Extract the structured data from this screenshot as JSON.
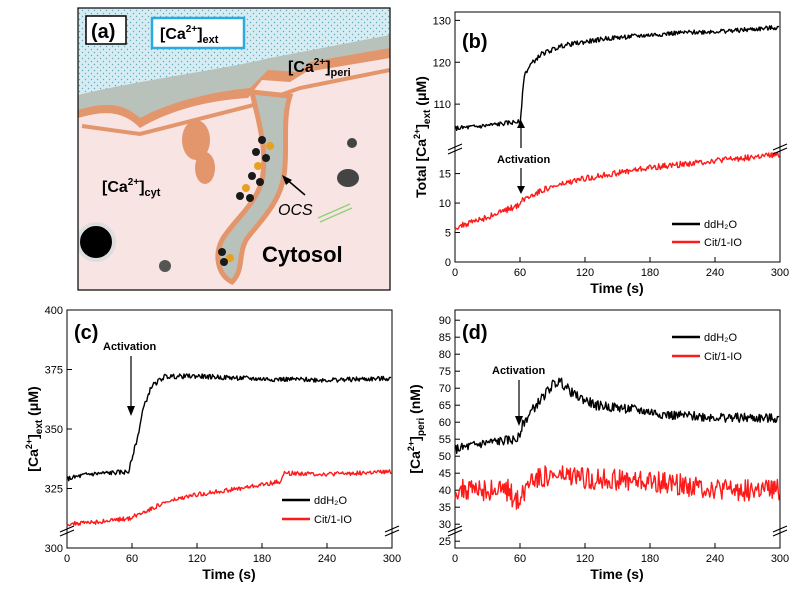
{
  "diagram": {
    "label": "(a)",
    "ca_ext_sym": "[Ca",
    "ca_ext_sup": "2+",
    "ca_ext_sub": "ext",
    "ca_ext_close": "]",
    "ca_peri_sym": "[Ca",
    "ca_peri_sup": "2+",
    "ca_peri_sub": "peri",
    "ca_peri_close": "]",
    "ca_cyt_sym": "[Ca",
    "ca_cyt_sup": "2+",
    "ca_cyt_sub": "cyt",
    "ca_cyt_close": "]",
    "ocs": "OCS",
    "cytosol": "Cytosol",
    "colors": {
      "extracellular": "#d6ecf3",
      "periplasm": "#b9c1bb",
      "membrane": "#e3956c",
      "cytosol": "#f8e4e2",
      "frame_highlight": "#29abe2"
    }
  },
  "chart_data": [
    {
      "id": "b",
      "label": "(b)",
      "type": "line",
      "broken_axis": true,
      "xlabel": "Time (s)",
      "ylabel": {
        "pre": "Total [Ca",
        "sup": "2+",
        "sub": "ext",
        "post": " (μM)"
      },
      "xlim": [
        0,
        300
      ],
      "xticks": [
        0,
        60,
        120,
        180,
        240,
        300
      ],
      "ylim_upper": [
        100,
        132
      ],
      "yticks_upper": [
        110,
        120,
        130
      ],
      "ylim_lower": [
        0,
        19
      ],
      "yticks_lower": [
        0,
        5,
        10,
        15
      ],
      "annotation": {
        "text": "Activation",
        "x": 60
      },
      "legend": [
        "ddH₂O",
        "Cit/1-IO"
      ],
      "series": [
        {
          "name": "ddH₂O",
          "color": "#000000",
          "noise": 0.55,
          "points": [
            [
              0,
              104.2
            ],
            [
              20,
              104.6
            ],
            [
              40,
              105.2
            ],
            [
              58,
              105.8
            ],
            [
              60,
              105.4
            ],
            [
              64,
              117
            ],
            [
              70,
              119.5
            ],
            [
              80,
              122
            ],
            [
              100,
              124
            ],
            [
              140,
              125.7
            ],
            [
              200,
              126.9
            ],
            [
              260,
              127.6
            ],
            [
              300,
              128.3
            ]
          ]
        },
        {
          "name": "Cit/1-IO",
          "color": "#ff1a1a",
          "noise": 0.5,
          "points": [
            [
              0,
              5.8
            ],
            [
              30,
              7.6
            ],
            [
              58,
              9.6
            ],
            [
              60,
              10.1
            ],
            [
              65,
              10.8
            ],
            [
              80,
              12.2
            ],
            [
              120,
              14.2
            ],
            [
              180,
              16
            ],
            [
              240,
              17.2
            ],
            [
              300,
              18.2
            ]
          ]
        }
      ]
    },
    {
      "id": "c",
      "label": "(c)",
      "type": "line",
      "broken_axis": true,
      "xlabel": "Time (s)",
      "ylabel": {
        "pre": "[Ca",
        "sup": "2+",
        "sub": "ext",
        "post": " (μM)"
      },
      "xlim": [
        0,
        300
      ],
      "xticks": [
        0,
        60,
        120,
        180,
        240,
        300
      ],
      "ylim": [
        300,
        400
      ],
      "yticks": [
        300,
        325,
        350,
        375,
        400
      ],
      "annotation": {
        "text": "Activation",
        "x": 60
      },
      "legend": [
        "ddH₂O",
        "Cit/1-IO"
      ],
      "series": [
        {
          "name": "ddH₂O",
          "color": "#000000",
          "noise": 1.0,
          "points": [
            [
              0,
              329
            ],
            [
              20,
              331
            ],
            [
              57,
              332
            ],
            [
              60,
              338
            ],
            [
              65,
              346
            ],
            [
              70,
              358
            ],
            [
              78,
              368
            ],
            [
              90,
              372
            ],
            [
              120,
              372.2
            ],
            [
              180,
              371
            ],
            [
              240,
              370.6
            ],
            [
              300,
              371.2
            ]
          ]
        },
        {
          "name": "Cit/1-IO",
          "color": "#ff1a1a",
          "noise": 0.9,
          "points": [
            [
              0,
              310
            ],
            [
              30,
              311
            ],
            [
              58,
              312.5
            ],
            [
              70,
              315
            ],
            [
              90,
              319
            ],
            [
              120,
              322.5
            ],
            [
              160,
              325
            ],
            [
              198,
              328
            ],
            [
              200,
              331.5
            ],
            [
              240,
              331
            ],
            [
              300,
              332
            ]
          ]
        }
      ]
    },
    {
      "id": "d",
      "label": "(d)",
      "type": "line",
      "broken_axis": true,
      "xlabel": "Time (s)",
      "ylabel": {
        "pre": "[Ca",
        "sup": "2+",
        "sub": "peri",
        "post": " (nM)"
      },
      "xlim": [
        0,
        300
      ],
      "xticks": [
        0,
        60,
        120,
        180,
        240,
        300
      ],
      "ylim": [
        23,
        93
      ],
      "yticks": [
        25,
        30,
        35,
        40,
        45,
        50,
        55,
        60,
        65,
        70,
        75,
        80,
        85,
        90
      ],
      "annotation": {
        "text": "Activation",
        "x": 60
      },
      "legend": [
        "ddH₂O",
        "Cit/1-IO"
      ],
      "series": [
        {
          "name": "ddH₂O",
          "color": "#000000",
          "noise": 1.4,
          "points": [
            [
              0,
              52
            ],
            [
              30,
              54
            ],
            [
              58,
              55
            ],
            [
              62,
              59
            ],
            [
              70,
              63
            ],
            [
              80,
              67
            ],
            [
              90,
              71
            ],
            [
              97,
              72
            ],
            [
              110,
              68
            ],
            [
              130,
              65
            ],
            [
              160,
              64
            ],
            [
              200,
              62
            ],
            [
              240,
              61.5
            ],
            [
              300,
              61
            ]
          ]
        },
        {
          "name": "Cit/1-IO",
          "color": "#ff1a1a",
          "noise": 3.2,
          "points": [
            [
              0,
              40
            ],
            [
              30,
              40
            ],
            [
              50,
              40
            ],
            [
              55,
              37
            ],
            [
              62,
              38
            ],
            [
              70,
              44
            ],
            [
              100,
              44
            ],
            [
              150,
              43
            ],
            [
              200,
              42
            ],
            [
              250,
              40
            ],
            [
              300,
              40
            ]
          ]
        }
      ]
    }
  ]
}
